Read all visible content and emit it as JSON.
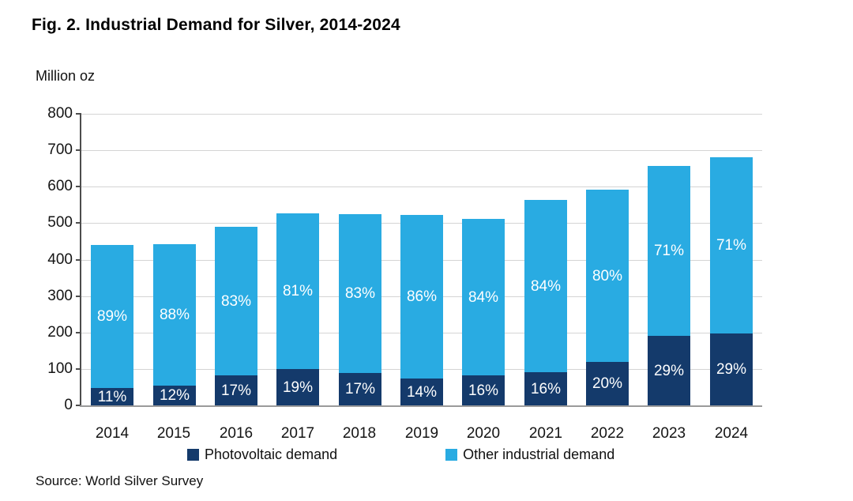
{
  "figure": {
    "title": "Fig. 2. Industrial Demand for Silver, 2014-2024",
    "unit_label": "Million oz",
    "source": "Source: World Silver Survey"
  },
  "legend": [
    {
      "label": "Photovoltaic demand",
      "color": "#143A6B"
    },
    {
      "label": "Other industrial demand",
      "color": "#29ABE2"
    }
  ],
  "chart_data": {
    "type": "bar",
    "stacked": true,
    "title": "Fig. 2. Industrial Demand for Silver, 2014-2024",
    "ylabel": "Million oz",
    "xlabel": "",
    "ylim": [
      0,
      800
    ],
    "yticks": [
      0,
      100,
      200,
      300,
      400,
      500,
      600,
      700,
      800
    ],
    "grid": true,
    "legend_position": "bottom",
    "categories": [
      "2014",
      "2015",
      "2016",
      "2017",
      "2018",
      "2019",
      "2020",
      "2021",
      "2022",
      "2023",
      "2024"
    ],
    "totals_moz": [
      440,
      443,
      490,
      527,
      525,
      523,
      511,
      564,
      592,
      657,
      681
    ],
    "series": [
      {
        "name": "Photovoltaic demand",
        "color": "#143A6B",
        "share_pct": [
          11,
          12,
          17,
          19,
          17,
          14,
          16,
          16,
          20,
          29,
          29
        ],
        "values_moz": [
          48,
          53,
          83,
          100,
          89,
          73,
          82,
          90,
          118,
          191,
          197
        ],
        "labels": [
          "11%",
          "12%",
          "17%",
          "19%",
          "17%",
          "14%",
          "16%",
          "16%",
          "20%",
          "29%",
          "29%"
        ]
      },
      {
        "name": "Other industrial demand",
        "color": "#29ABE2",
        "share_pct": [
          89,
          88,
          83,
          81,
          83,
          86,
          84,
          84,
          80,
          71,
          71
        ],
        "values_moz": [
          392,
          390,
          407,
          427,
          436,
          450,
          429,
          474,
          474,
          466,
          484
        ],
        "labels": [
          "89%",
          "88%",
          "83%",
          "81%",
          "83%",
          "86%",
          "84%",
          "84%",
          "80%",
          "71%",
          "71%"
        ]
      }
    ]
  }
}
